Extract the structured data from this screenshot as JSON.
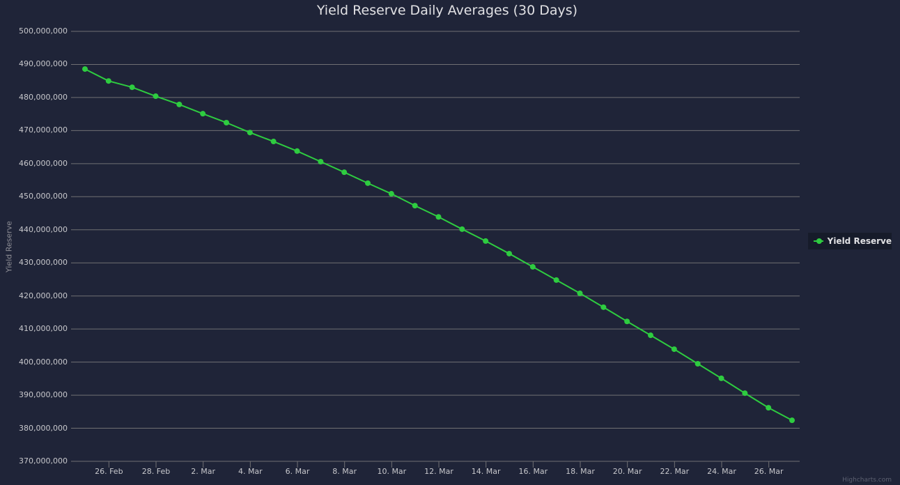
{
  "chart": {
    "title": "Yield Reserve Daily Averages (30 Days)",
    "credits": "Highcharts.com",
    "legend_label": "Yield Reserve",
    "y_axis_title": "Yield Reserve",
    "colors": {
      "background": "#1f2438",
      "series": "#2ecc40",
      "grid": "#707073",
      "legend_bg": "#161b2a"
    },
    "y_ticks": [
      "500,000,000",
      "490,000,000",
      "480,000,000",
      "470,000,000",
      "460,000,000",
      "450,000,000",
      "440,000,000",
      "430,000,000",
      "420,000,000",
      "410,000,000",
      "400,000,000",
      "390,000,000",
      "380,000,000",
      "370,000,000"
    ],
    "x_ticks": [
      "26. Feb",
      "28. Feb",
      "2. Mar",
      "4. Mar",
      "6. Mar",
      "8. Mar",
      "10. Mar",
      "12. Mar",
      "14. Mar",
      "16. Mar",
      "18. Mar",
      "20. Mar",
      "22. Mar",
      "24. Mar",
      "26. Mar"
    ]
  },
  "chart_data": {
    "type": "line",
    "title": "Yield Reserve Daily Averages (30 Days)",
    "xlabel": "",
    "ylabel": "Yield Reserve",
    "ylim": [
      370000000,
      500000000
    ],
    "grid": true,
    "legend_position": "right",
    "x": [
      "25 Feb",
      "26 Feb",
      "27 Feb",
      "28 Feb",
      "1 Mar",
      "2 Mar",
      "3 Mar",
      "4 Mar",
      "5 Mar",
      "6 Mar",
      "7 Mar",
      "8 Mar",
      "9 Mar",
      "10 Mar",
      "11 Mar",
      "12 Mar",
      "13 Mar",
      "14 Mar",
      "15 Mar",
      "16 Mar",
      "17 Mar",
      "18 Mar",
      "19 Mar",
      "20 Mar",
      "21 Mar",
      "22 Mar",
      "23 Mar",
      "24 Mar",
      "25 Mar",
      "26 Mar",
      "27 Mar"
    ],
    "series": [
      {
        "name": "Yield Reserve",
        "values": [
          488600000,
          485000000,
          483100000,
          480400000,
          477900000,
          475100000,
          472400000,
          469400000,
          466700000,
          463800000,
          460600000,
          457400000,
          454100000,
          450900000,
          447300000,
          443900000,
          440200000,
          436600000,
          432800000,
          428800000,
          424800000,
          420800000,
          416600000,
          412300000,
          408100000,
          403900000,
          399500000,
          395100000,
          390600000,
          386200000,
          382400000
        ]
      }
    ]
  }
}
